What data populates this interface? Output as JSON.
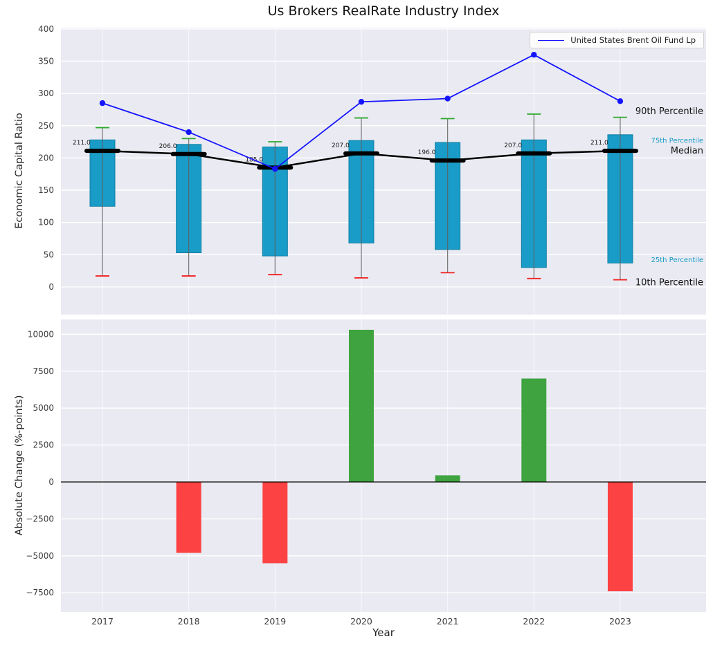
{
  "title": "Us Brokers RealRate Industry Index",
  "colors": {
    "background": "#eaeaf2",
    "grid": "#ffffff",
    "box_fill": "#199cc7",
    "box_edge": "#0f7fa3",
    "whisker": "#5f5f5f",
    "cap_90th": "#2eaa2e",
    "cap_10th": "#f21d1d",
    "median": "#000000",
    "line": "#1414ff",
    "bar_positive": "#3fa33f",
    "bar_negative": "#fc4242",
    "tick_label": "#3b3b3b",
    "axis_label": "#222222"
  },
  "chart_data": [
    {
      "type": "boxplot",
      "title": "Us Brokers RealRate Industry Index",
      "ylabel": "Economic Capital Ratio",
      "ylim": [
        -43,
        402
      ],
      "yticks": [
        0,
        50,
        100,
        150,
        200,
        250,
        300,
        350,
        400
      ],
      "grid": true,
      "legend_position": "upper right",
      "categories": [
        "2017",
        "2018",
        "2019",
        "2020",
        "2021",
        "2022",
        "2023"
      ],
      "boxes": [
        {
          "year": "2017",
          "p10": 17,
          "p25": 125,
          "median": 211,
          "p75": 228,
          "p90": 247
        },
        {
          "year": "2018",
          "p10": 17,
          "p25": 53,
          "median": 206,
          "p75": 221,
          "p90": 230
        },
        {
          "year": "2019",
          "p10": 19,
          "p25": 48,
          "median": 185,
          "p75": 217,
          "p90": 225
        },
        {
          "year": "2020",
          "p10": 14,
          "p25": 68,
          "median": 207,
          "p75": 227,
          "p90": 262
        },
        {
          "year": "2021",
          "p10": 22,
          "p25": 58,
          "median": 196,
          "p75": 224,
          "p90": 261
        },
        {
          "year": "2022",
          "p10": 13,
          "p25": 30,
          "median": 207,
          "p75": 228,
          "p90": 268
        },
        {
          "year": "2023",
          "p10": 11,
          "p25": 37,
          "median": 211,
          "p75": 236,
          "p90": 263
        }
      ],
      "median_labels": [
        "211.0",
        "206.0",
        "185.0",
        "207.0",
        "196.0",
        "207.0",
        "211.0"
      ],
      "series": [
        {
          "name": "United States Brent Oil Fund Lp",
          "type": "line",
          "color": "#1414ff",
          "values": [
            285,
            240,
            183,
            287,
            292,
            360,
            288
          ]
        }
      ],
      "annotations": [
        {
          "label": "90th Percentile",
          "value": 272,
          "color": "#111111",
          "size": 13
        },
        {
          "label": "75th Percentile",
          "value": 228,
          "color": "#199cc7",
          "size": 10
        },
        {
          "label": "Median",
          "value": 211,
          "color": "#111111",
          "size": 13
        },
        {
          "label": "25th Percentile",
          "value": 43,
          "color": "#199cc7",
          "size": 10
        },
        {
          "label": "10th Percentile",
          "value": 7,
          "color": "#111111",
          "size": 13
        }
      ]
    },
    {
      "type": "bar",
      "ylabel": "Absolute Change (%-points)",
      "xlabel": "Year",
      "ylim": [
        -8800,
        11000
      ],
      "yticks": [
        -7500,
        -5000,
        -2500,
        0,
        2500,
        5000,
        7500,
        10000
      ],
      "grid": true,
      "categories": [
        "2017",
        "2018",
        "2019",
        "2020",
        "2021",
        "2022",
        "2023"
      ],
      "values": [
        null,
        -4800,
        -5500,
        10300,
        450,
        7000,
        -7400
      ]
    }
  ]
}
